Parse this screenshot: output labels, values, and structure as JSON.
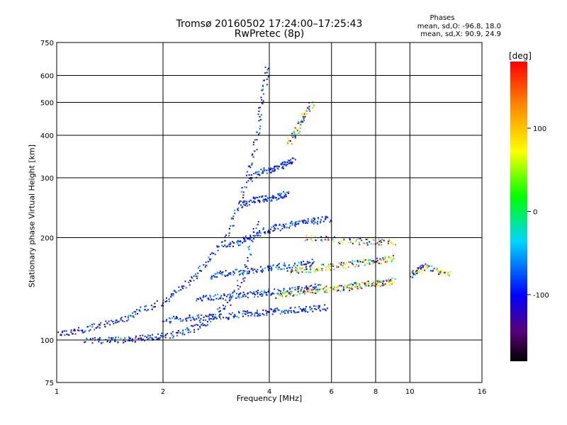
{
  "chart_data": {
    "type": "scatter",
    "title": "Tromsø 20160502 17:24:00–17:25:43",
    "subtitle": "RwPretec (8p)",
    "xlabel": "Frequency [MHz]",
    "ylabel": "Stationary phase Virtual Height [km]",
    "x_scale": "log",
    "y_scale": "log",
    "xlim": [
      1,
      16
    ],
    "ylim": [
      75,
      750
    ],
    "x_ticks": [
      1,
      2,
      4,
      6,
      8,
      10,
      16
    ],
    "y_ticks": [
      75,
      100,
      200,
      300,
      400,
      500,
      600,
      750
    ],
    "grid": true,
    "phase_stats": {
      "title": "Phases",
      "o_line": "mean, sd,O: -96.8, 18.0",
      "x_line": "mean, sd,X:  90.9, 24.9"
    },
    "colorbar": {
      "label": "[deg]",
      "ticks": [
        100,
        0,
        -100
      ],
      "range": [
        -180,
        180
      ],
      "colormap": "rainbow"
    },
    "series": [
      {
        "color_mode": "blue",
        "mean_phase": -96.8,
        "traces": [
          {
            "x": [
              1.0,
              1.15,
              1.3,
              1.5,
              1.7,
              2.0,
              2.3,
              2.6,
              3.0,
              3.3,
              3.6,
              3.8,
              3.95
            ],
            "y": [
              105,
              107,
              110,
              115,
              122,
              130,
              145,
              165,
              200,
              260,
              360,
              500,
              640
            ]
          },
          {
            "x": [
              1.2,
              1.4,
              1.6,
              1.8,
              2.0,
              2.3,
              2.6,
              3.0,
              3.4,
              3.7
            ],
            "y": [
              100,
              100,
              101,
              102,
              103,
              106,
              112,
              125,
              160,
              230
            ]
          },
          {
            "x": [
              2.0,
              2.3,
              2.6,
              3.0,
              3.4,
              3.8,
              4.2,
              4.7,
              5.2,
              5.8
            ],
            "y": [
              115,
              116,
              117,
              118,
              120,
              121,
              122,
              123,
              124,
              125
            ]
          },
          {
            "x": [
              2.5,
              2.8,
              3.2,
              3.6,
              4.0,
              4.5,
              5.0,
              5.5
            ],
            "y": [
              133,
              134,
              135,
              137,
              139,
              140,
              142,
              145
            ]
          },
          {
            "x": [
              2.7,
              3.0,
              3.4,
              3.8,
              4.2,
              4.8,
              5.4
            ],
            "y": [
              155,
              158,
              160,
              162,
              165,
              168,
              170
            ]
          },
          {
            "x": [
              3.0,
              3.3,
              3.6,
              4.0,
              4.4,
              4.9,
              5.4,
              5.9
            ],
            "y": [
              190,
              195,
              205,
              212,
              218,
              222,
              225,
              228
            ]
          },
          {
            "x": [
              3.3,
              3.6,
              3.9,
              4.2,
              4.5
            ],
            "y": [
              250,
              260,
              262,
              265,
              270
            ]
          },
          {
            "x": [
              3.5,
              3.8,
              4.1,
              4.4,
              4.7
            ],
            "y": [
              300,
              315,
              320,
              330,
              340
            ]
          }
        ]
      },
      {
        "color_mode": "mixed",
        "mean_phase": 90.9,
        "traces": [
          {
            "x": [
              4.2,
              4.6,
              5.0,
              5.5,
              6.0,
              6.5,
              7.0,
              7.5,
              8.0,
              8.5,
              9.0
            ],
            "y": [
              135,
              138,
              140,
              141,
              142,
              143,
              145,
              146,
              147,
              148,
              150
            ]
          },
          {
            "x": [
              4.5,
              5.0,
              5.5,
              6.0,
              6.8,
              7.5,
              8.2,
              9.0
            ],
            "y": [
              160,
              162,
              163,
              165,
              168,
              170,
              172,
              175
            ]
          },
          {
            "x": [
              5.0,
              6.0,
              7.0,
              8.0,
              9.0
            ],
            "y": [
              200,
              198,
              196,
              195,
              195
            ]
          },
          {
            "x": [
              4.5,
              4.8,
              5.0,
              5.3
            ],
            "y": [
              380,
              420,
              460,
              500
            ]
          },
          {
            "x": [
              10.0,
              10.5,
              11.0,
              12.0,
              13.0
            ],
            "y": [
              155,
              160,
              165,
              160,
              158
            ]
          }
        ]
      }
    ]
  }
}
